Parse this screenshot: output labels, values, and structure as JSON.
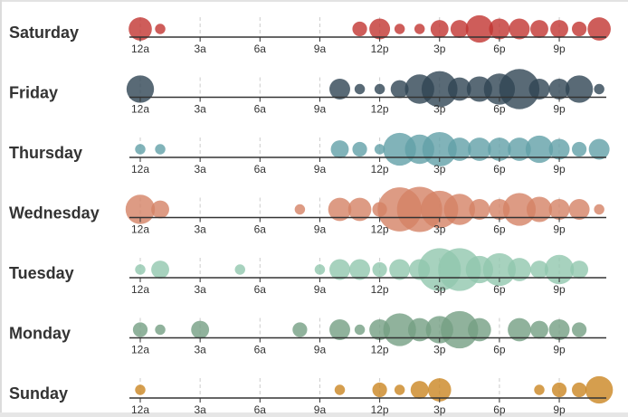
{
  "chart_data": {
    "type": "scatter",
    "subtype": "single-axis punch card",
    "x_tick_labels": [
      "12a",
      "3a",
      "6a",
      "9a",
      "12p",
      "3p",
      "6p",
      "9p"
    ],
    "hours": [
      "12a",
      "1a",
      "2a",
      "3a",
      "4a",
      "5a",
      "6a",
      "7a",
      "8a",
      "9a",
      "10a",
      "11a",
      "12p",
      "1p",
      "2p",
      "3p",
      "4p",
      "5p",
      "6p",
      "7p",
      "8p",
      "9p",
      "10p",
      "11p"
    ],
    "rows": [
      {
        "day": "Saturday",
        "color": "#c23531",
        "values": [
          5,
          1,
          0,
          0,
          0,
          0,
          0,
          0,
          0,
          0,
          0,
          2,
          4,
          1,
          1,
          3,
          3,
          7,
          4,
          4,
          3,
          3,
          2,
          5
        ]
      },
      {
        "day": "Friday",
        "color": "#2f4554",
        "values": [
          7,
          0,
          0,
          0,
          0,
          0,
          0,
          0,
          0,
          0,
          4,
          1,
          1,
          3,
          8,
          12,
          5,
          6,
          9,
          15,
          4,
          4,
          7,
          1
        ]
      },
      {
        "day": "Thursday",
        "color": "#61a0a8",
        "values": [
          1,
          1,
          0,
          0,
          0,
          0,
          0,
          0,
          0,
          0,
          3,
          2,
          1,
          10,
          8,
          11,
          5,
          5,
          5,
          5,
          7,
          4,
          2,
          4
        ]
      },
      {
        "day": "Wednesday",
        "color": "#d48265",
        "values": [
          8,
          3,
          0,
          0,
          0,
          0,
          0,
          0,
          1,
          0,
          5,
          5,
          2,
          18,
          19,
          13,
          9,
          4,
          4,
          10,
          6,
          4,
          4,
          1
        ]
      },
      {
        "day": "Tuesday",
        "color": "#91c7ae",
        "values": [
          1,
          3,
          0,
          0,
          0,
          1,
          0,
          0,
          0,
          1,
          4,
          4,
          2,
          4,
          4,
          17,
          17,
          7,
          10,
          5,
          3,
          8,
          3,
          0
        ]
      },
      {
        "day": "Monday",
        "color": "#749f83",
        "values": [
          2,
          1,
          0,
          3,
          0,
          0,
          0,
          0,
          2,
          0,
          4,
          1,
          4,
          10,
          5,
          7,
          13,
          5,
          0,
          5,
          3,
          4,
          2,
          0
        ]
      },
      {
        "day": "Sunday",
        "color": "#ca8622",
        "values": [
          1,
          0,
          0,
          0,
          0,
          0,
          0,
          0,
          0,
          0,
          1,
          0,
          2,
          1,
          3,
          5,
          0,
          0,
          0,
          0,
          1,
          2,
          2,
          7
        ]
      }
    ],
    "size_scale_note": "bubble area proportional to value"
  }
}
